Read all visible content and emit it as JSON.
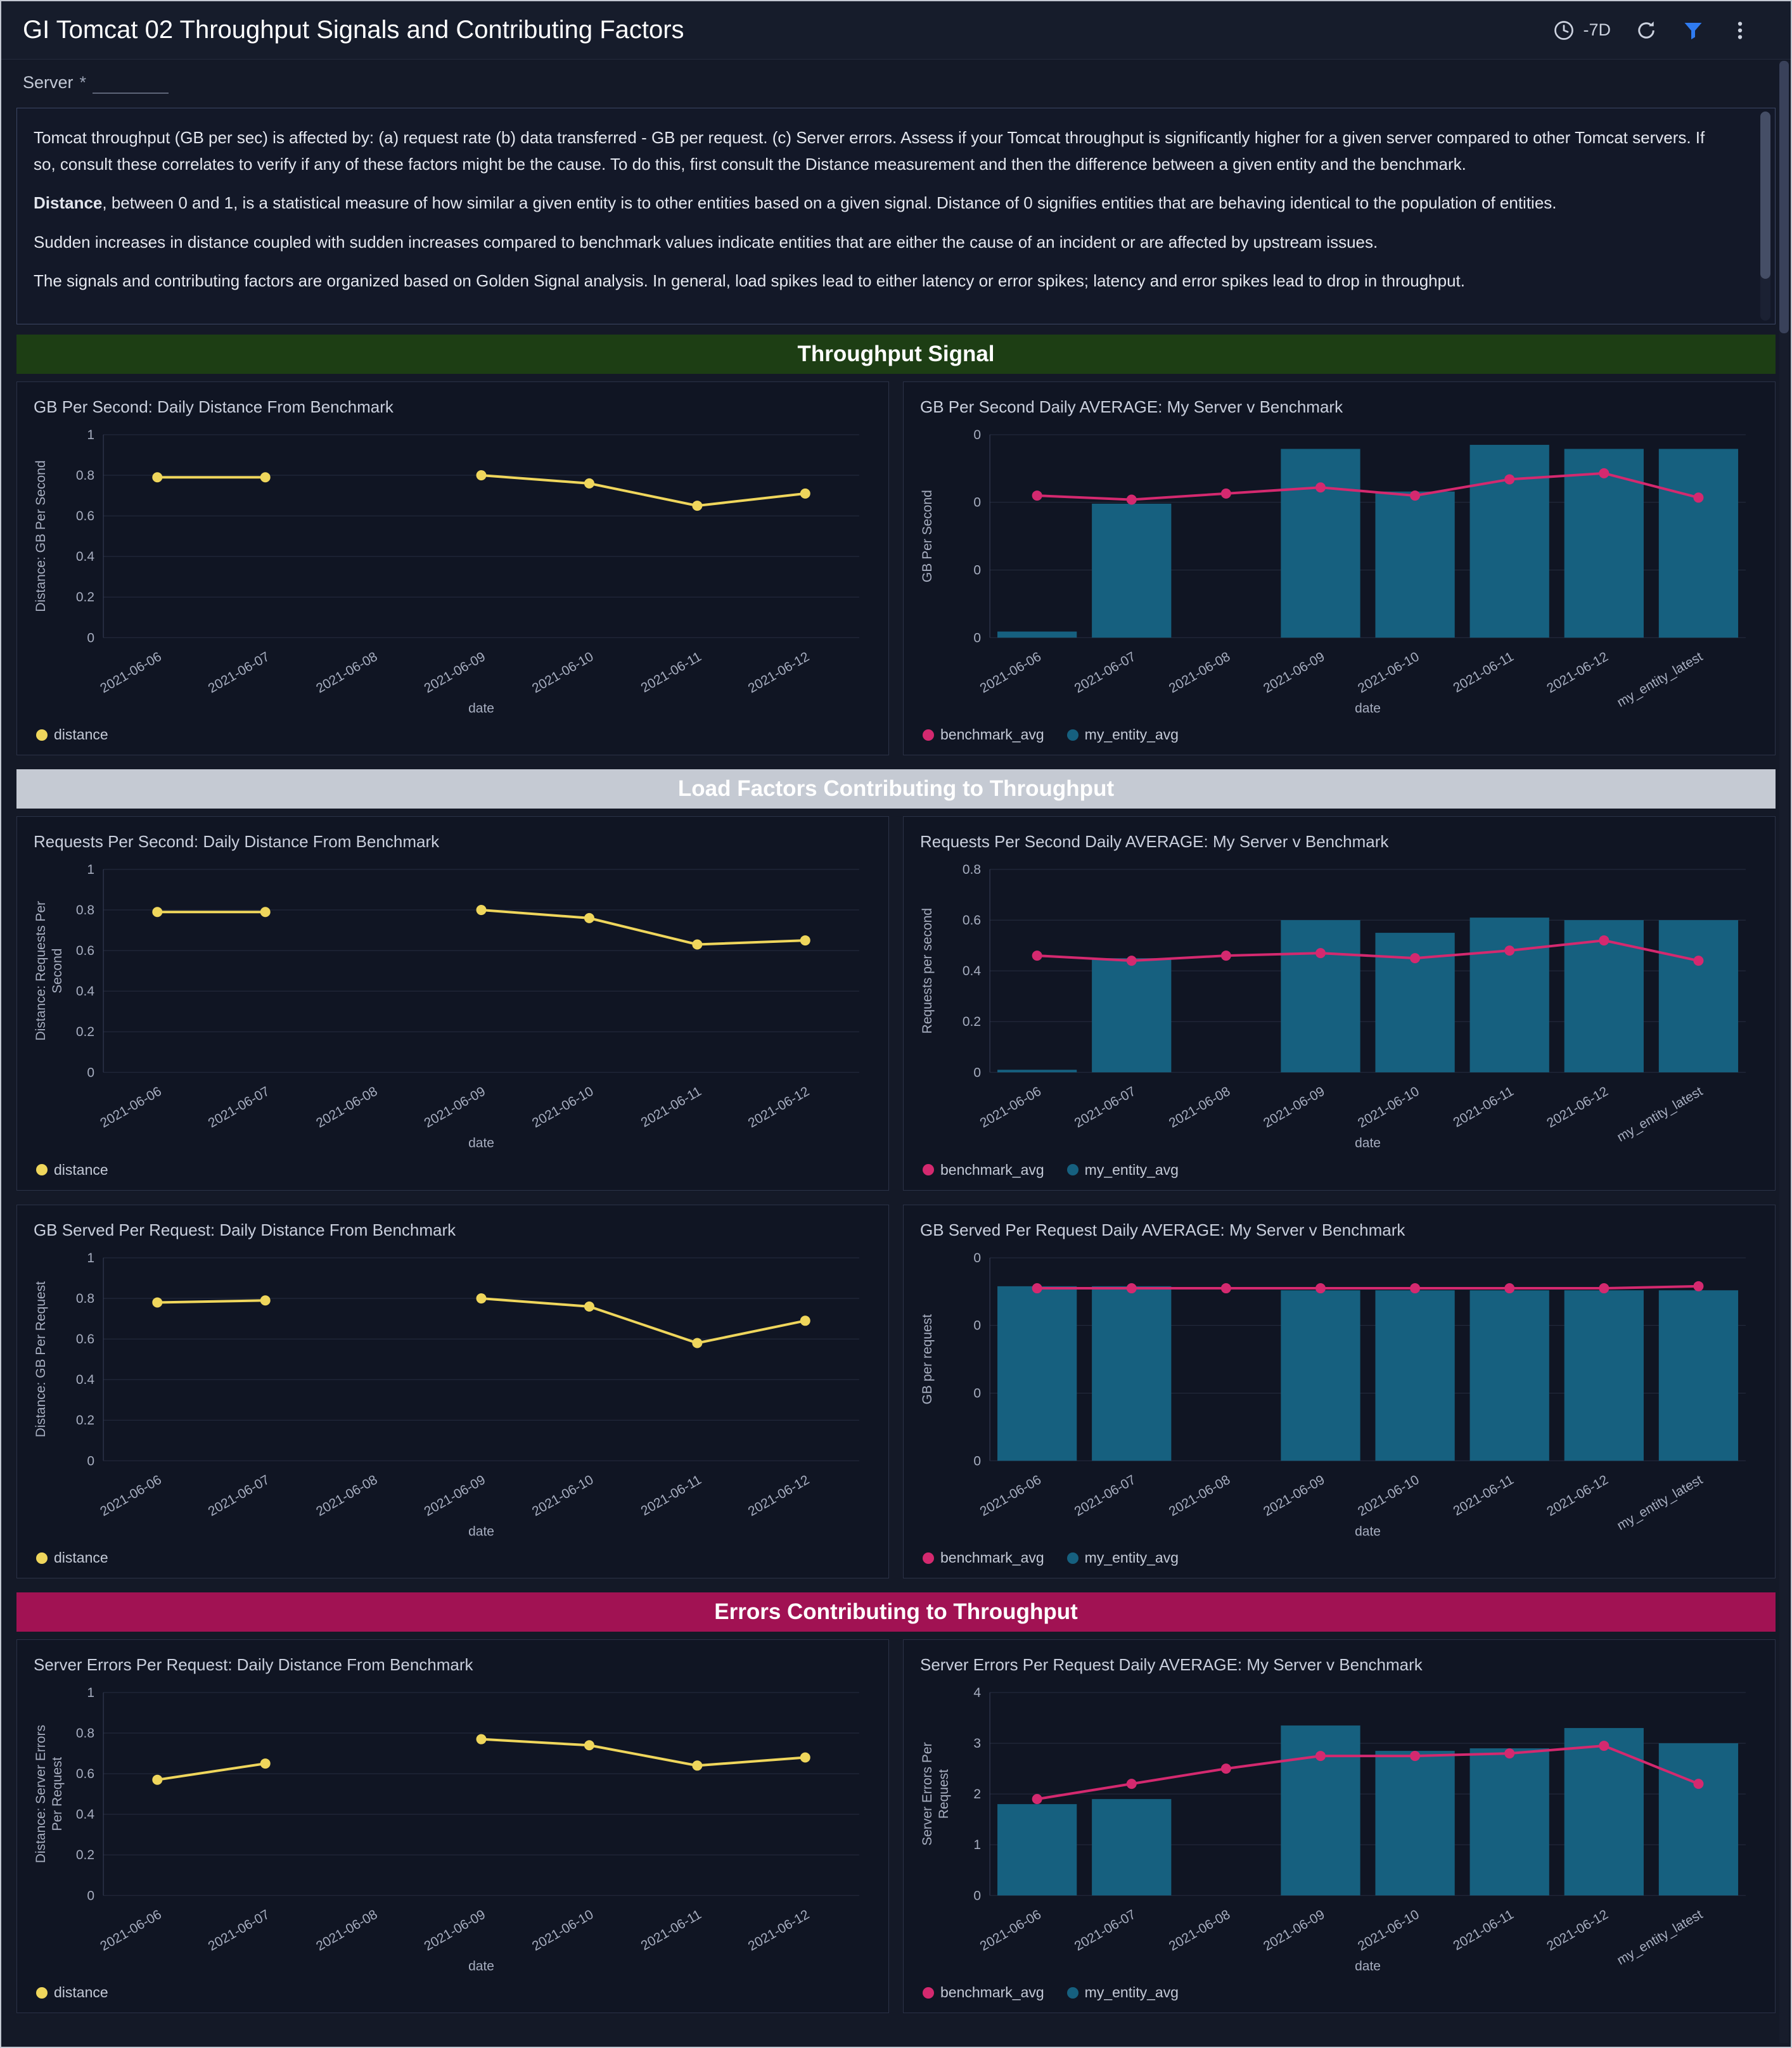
{
  "header": {
    "title": "GI Tomcat 02 Throughput Signals and Contributing Factors",
    "time_range": "-7D",
    "icons": [
      "clock-icon",
      "refresh-icon",
      "filter-icon",
      "kebab-menu-icon"
    ],
    "filter_icon_color": "#2f7bf0"
  },
  "filter": {
    "label": "Server",
    "required_mark": "*",
    "value": ""
  },
  "description": {
    "p1": "Tomcat throughput (GB per sec) is affected by: (a) request rate (b) data transferred - GB per request. (c) Server errors. Assess if your Tomcat throughput is significantly higher for a given server compared to other Tomcat servers. If so, consult these correlates to verify if any of these factors might be the cause. To do this, first consult the Distance measurement and then the difference between a given entity and the benchmark.",
    "p2_bold": "Distance",
    "p2_rest": ", between 0 and 1, is a statistical measure of how similar a given entity is to other entities based on a given signal. Distance of 0 signifies entities that are behaving identical to the population of entities.",
    "p3": "Sudden increases in distance coupled with sudden increases compared to benchmark values indicate entities that are either the cause of an incident or are affected by upstream issues.",
    "p4": "The signals and contributing factors are organized based on Golden Signal analysis. In general, load spikes lead to either latency or error spikes; latency and error spikes lead to drop in throughput."
  },
  "sections": [
    {
      "title": "Throughput Signal",
      "color": "#1d3e14"
    },
    {
      "title": "Load Factors Contributing to Throughput",
      "color": "#c5cad3"
    },
    {
      "title": "Errors Contributing to Throughput",
      "color": "#a11253"
    }
  ],
  "chart_data": [
    {
      "title": "GB Per Second: Daily Distance From Benchmark",
      "type": "line",
      "categories": [
        "2021-06-06",
        "2021-06-07",
        "2021-06-08",
        "2021-06-09",
        "2021-06-10",
        "2021-06-11",
        "2021-06-12"
      ],
      "xlabel": "date",
      "ylabel_lines": [
        "Distance: GB Per Second"
      ],
      "ylim": [
        0,
        1
      ],
      "yticks": [
        0,
        0.2,
        0.4,
        0.6,
        0.8,
        1
      ],
      "ytick_labels": [
        "0",
        "0.2",
        "0.4",
        "0.6",
        "0.8",
        "1"
      ],
      "grid": true,
      "legend_position": "bottom-left",
      "series": [
        {
          "name": "distance",
          "type": "line",
          "color": "#efd65c",
          "values": [
            0.79,
            0.79,
            null,
            0.8,
            0.76,
            0.65,
            0.71
          ]
        }
      ],
      "legend": [
        {
          "label": "distance",
          "color": "#efd65c"
        }
      ]
    },
    {
      "title": "GB Per Second Daily AVERAGE: My Server v Benchmark",
      "type": "combo",
      "categories": [
        "2021-06-06",
        "2021-06-07",
        "2021-06-08",
        "2021-06-09",
        "2021-06-10",
        "2021-06-11",
        "2021-06-12",
        "my_entity_latest"
      ],
      "xlabel": "date",
      "ylabel_lines": [
        "GB Per Second"
      ],
      "ylim": [
        0,
        1
      ],
      "yticks": [
        0,
        0.333,
        0.667,
        1
      ],
      "ytick_labels": [
        "0",
        "0",
        "0",
        "0"
      ],
      "grid": true,
      "legend_position": "bottom-left",
      "series": [
        {
          "name": "my_entity_avg",
          "type": "bar",
          "color": "#16607f",
          "values": [
            0.03,
            0.66,
            null,
            0.93,
            0.72,
            0.95,
            0.93,
            0.93
          ]
        },
        {
          "name": "benchmark_avg",
          "type": "line",
          "color": "#d4296f",
          "values": [
            0.7,
            0.68,
            0.71,
            0.74,
            0.7,
            0.78,
            0.81,
            0.69
          ]
        }
      ],
      "legend": [
        {
          "label": "benchmark_avg",
          "color": "#d4296f"
        },
        {
          "label": "my_entity_avg",
          "color": "#16607f"
        }
      ]
    },
    {
      "title": "Requests Per Second: Daily Distance From Benchmark",
      "type": "line",
      "categories": [
        "2021-06-06",
        "2021-06-07",
        "2021-06-08",
        "2021-06-09",
        "2021-06-10",
        "2021-06-11",
        "2021-06-12"
      ],
      "xlabel": "date",
      "ylabel_lines": [
        "Distance: Requests Per",
        "Second"
      ],
      "ylim": [
        0,
        1
      ],
      "yticks": [
        0,
        0.2,
        0.4,
        0.6,
        0.8,
        1
      ],
      "ytick_labels": [
        "0",
        "0.2",
        "0.4",
        "0.6",
        "0.8",
        "1"
      ],
      "grid": true,
      "legend_position": "bottom-left",
      "series": [
        {
          "name": "distance",
          "type": "line",
          "color": "#efd65c",
          "values": [
            0.79,
            0.79,
            null,
            0.8,
            0.76,
            0.63,
            0.65
          ]
        }
      ],
      "legend": [
        {
          "label": "distance",
          "color": "#efd65c"
        }
      ]
    },
    {
      "title": "Requests Per Second Daily AVERAGE: My Server v Benchmark",
      "type": "combo",
      "categories": [
        "2021-06-06",
        "2021-06-07",
        "2021-06-08",
        "2021-06-09",
        "2021-06-10",
        "2021-06-11",
        "2021-06-12",
        "my_entity_latest"
      ],
      "xlabel": "date",
      "ylabel_lines": [
        "Requests per second"
      ],
      "ylim": [
        0,
        0.8
      ],
      "yticks": [
        0,
        0.2,
        0.4,
        0.6,
        0.8
      ],
      "ytick_labels": [
        "0",
        "0.2",
        "0.4",
        "0.6",
        "0.8"
      ],
      "grid": true,
      "legend_position": "bottom-left",
      "series": [
        {
          "name": "my_entity_avg",
          "type": "bar",
          "color": "#16607f",
          "values": [
            0.01,
            0.45,
            null,
            0.6,
            0.55,
            0.61,
            0.6,
            0.6
          ]
        },
        {
          "name": "benchmark_avg",
          "type": "line",
          "color": "#d4296f",
          "values": [
            0.46,
            0.44,
            0.46,
            0.47,
            0.45,
            0.48,
            0.52,
            0.44
          ]
        }
      ],
      "legend": [
        {
          "label": "benchmark_avg",
          "color": "#d4296f"
        },
        {
          "label": "my_entity_avg",
          "color": "#16607f"
        }
      ]
    },
    {
      "title": "GB Served Per Request: Daily Distance From Benchmark",
      "type": "line",
      "categories": [
        "2021-06-06",
        "2021-06-07",
        "2021-06-08",
        "2021-06-09",
        "2021-06-10",
        "2021-06-11",
        "2021-06-12"
      ],
      "xlabel": "date",
      "ylabel_lines": [
        "Distance: GB Per Request"
      ],
      "ylim": [
        0,
        1
      ],
      "yticks": [
        0,
        0.2,
        0.4,
        0.6,
        0.8,
        1
      ],
      "ytick_labels": [
        "0",
        "0.2",
        "0.4",
        "0.6",
        "0.8",
        "1"
      ],
      "grid": true,
      "legend_position": "bottom-left",
      "series": [
        {
          "name": "distance",
          "type": "line",
          "color": "#efd65c",
          "values": [
            0.78,
            0.79,
            null,
            0.8,
            0.76,
            0.58,
            0.69
          ]
        }
      ],
      "legend": [
        {
          "label": "distance",
          "color": "#efd65c"
        }
      ]
    },
    {
      "title": "GB Served Per Request Daily AVERAGE: My Server v Benchmark",
      "type": "combo",
      "categories": [
        "2021-06-06",
        "2021-06-07",
        "2021-06-08",
        "2021-06-09",
        "2021-06-10",
        "2021-06-11",
        "2021-06-12",
        "my_entity_latest"
      ],
      "xlabel": "date",
      "ylabel_lines": [
        "GB per request"
      ],
      "ylim": [
        0,
        1
      ],
      "yticks": [
        0,
        0.333,
        0.667,
        1
      ],
      "ytick_labels": [
        "0",
        "0",
        "0",
        "0"
      ],
      "grid": true,
      "legend_position": "bottom-left",
      "series": [
        {
          "name": "my_entity_avg",
          "type": "bar",
          "color": "#16607f",
          "values": [
            0.86,
            0.86,
            null,
            0.84,
            0.84,
            0.84,
            0.84,
            0.84
          ]
        },
        {
          "name": "benchmark_avg",
          "type": "line",
          "color": "#d4296f",
          "values": [
            0.85,
            0.85,
            0.85,
            0.85,
            0.85,
            0.85,
            0.85,
            0.86
          ]
        }
      ],
      "legend": [
        {
          "label": "benchmark_avg",
          "color": "#d4296f"
        },
        {
          "label": "my_entity_avg",
          "color": "#16607f"
        }
      ]
    },
    {
      "title": "Server Errors Per Request: Daily Distance From Benchmark",
      "type": "line",
      "categories": [
        "2021-06-06",
        "2021-06-07",
        "2021-06-08",
        "2021-06-09",
        "2021-06-10",
        "2021-06-11",
        "2021-06-12"
      ],
      "xlabel": "date",
      "ylabel_lines": [
        "Distance: Server Errors",
        "Per Request"
      ],
      "ylim": [
        0,
        1
      ],
      "yticks": [
        0,
        0.2,
        0.4,
        0.6,
        0.8,
        1
      ],
      "ytick_labels": [
        "0",
        "0.2",
        "0.4",
        "0.6",
        "0.8",
        "1"
      ],
      "grid": true,
      "legend_position": "bottom-left",
      "series": [
        {
          "name": "distance",
          "type": "line",
          "color": "#efd65c",
          "values": [
            0.57,
            0.65,
            null,
            0.77,
            0.74,
            0.64,
            0.68
          ]
        }
      ],
      "legend": [
        {
          "label": "distance",
          "color": "#efd65c"
        }
      ]
    },
    {
      "title": "Server Errors Per Request Daily AVERAGE: My Server v Benchmark",
      "type": "combo",
      "categories": [
        "2021-06-06",
        "2021-06-07",
        "2021-06-08",
        "2021-06-09",
        "2021-06-10",
        "2021-06-11",
        "2021-06-12",
        "my_entity_latest"
      ],
      "xlabel": "date",
      "ylabel_lines": [
        "Server Errors Per",
        "Request"
      ],
      "ylim": [
        0,
        4
      ],
      "yticks": [
        0,
        1,
        2,
        3,
        4
      ],
      "ytick_labels": [
        "0",
        "1",
        "2",
        "3",
        "4"
      ],
      "grid": true,
      "legend_position": "bottom-left",
      "series": [
        {
          "name": "my_entity_avg",
          "type": "bar",
          "color": "#16607f",
          "values": [
            1.8,
            1.9,
            null,
            3.35,
            2.85,
            2.9,
            3.3,
            3.0
          ]
        },
        {
          "name": "benchmark_avg",
          "type": "line",
          "color": "#d4296f",
          "values": [
            1.9,
            2.2,
            2.5,
            2.75,
            2.75,
            2.8,
            2.95,
            2.2
          ]
        }
      ],
      "legend": [
        {
          "label": "benchmark_avg",
          "color": "#d4296f"
        },
        {
          "label": "my_entity_avg",
          "color": "#16607f"
        }
      ]
    }
  ]
}
